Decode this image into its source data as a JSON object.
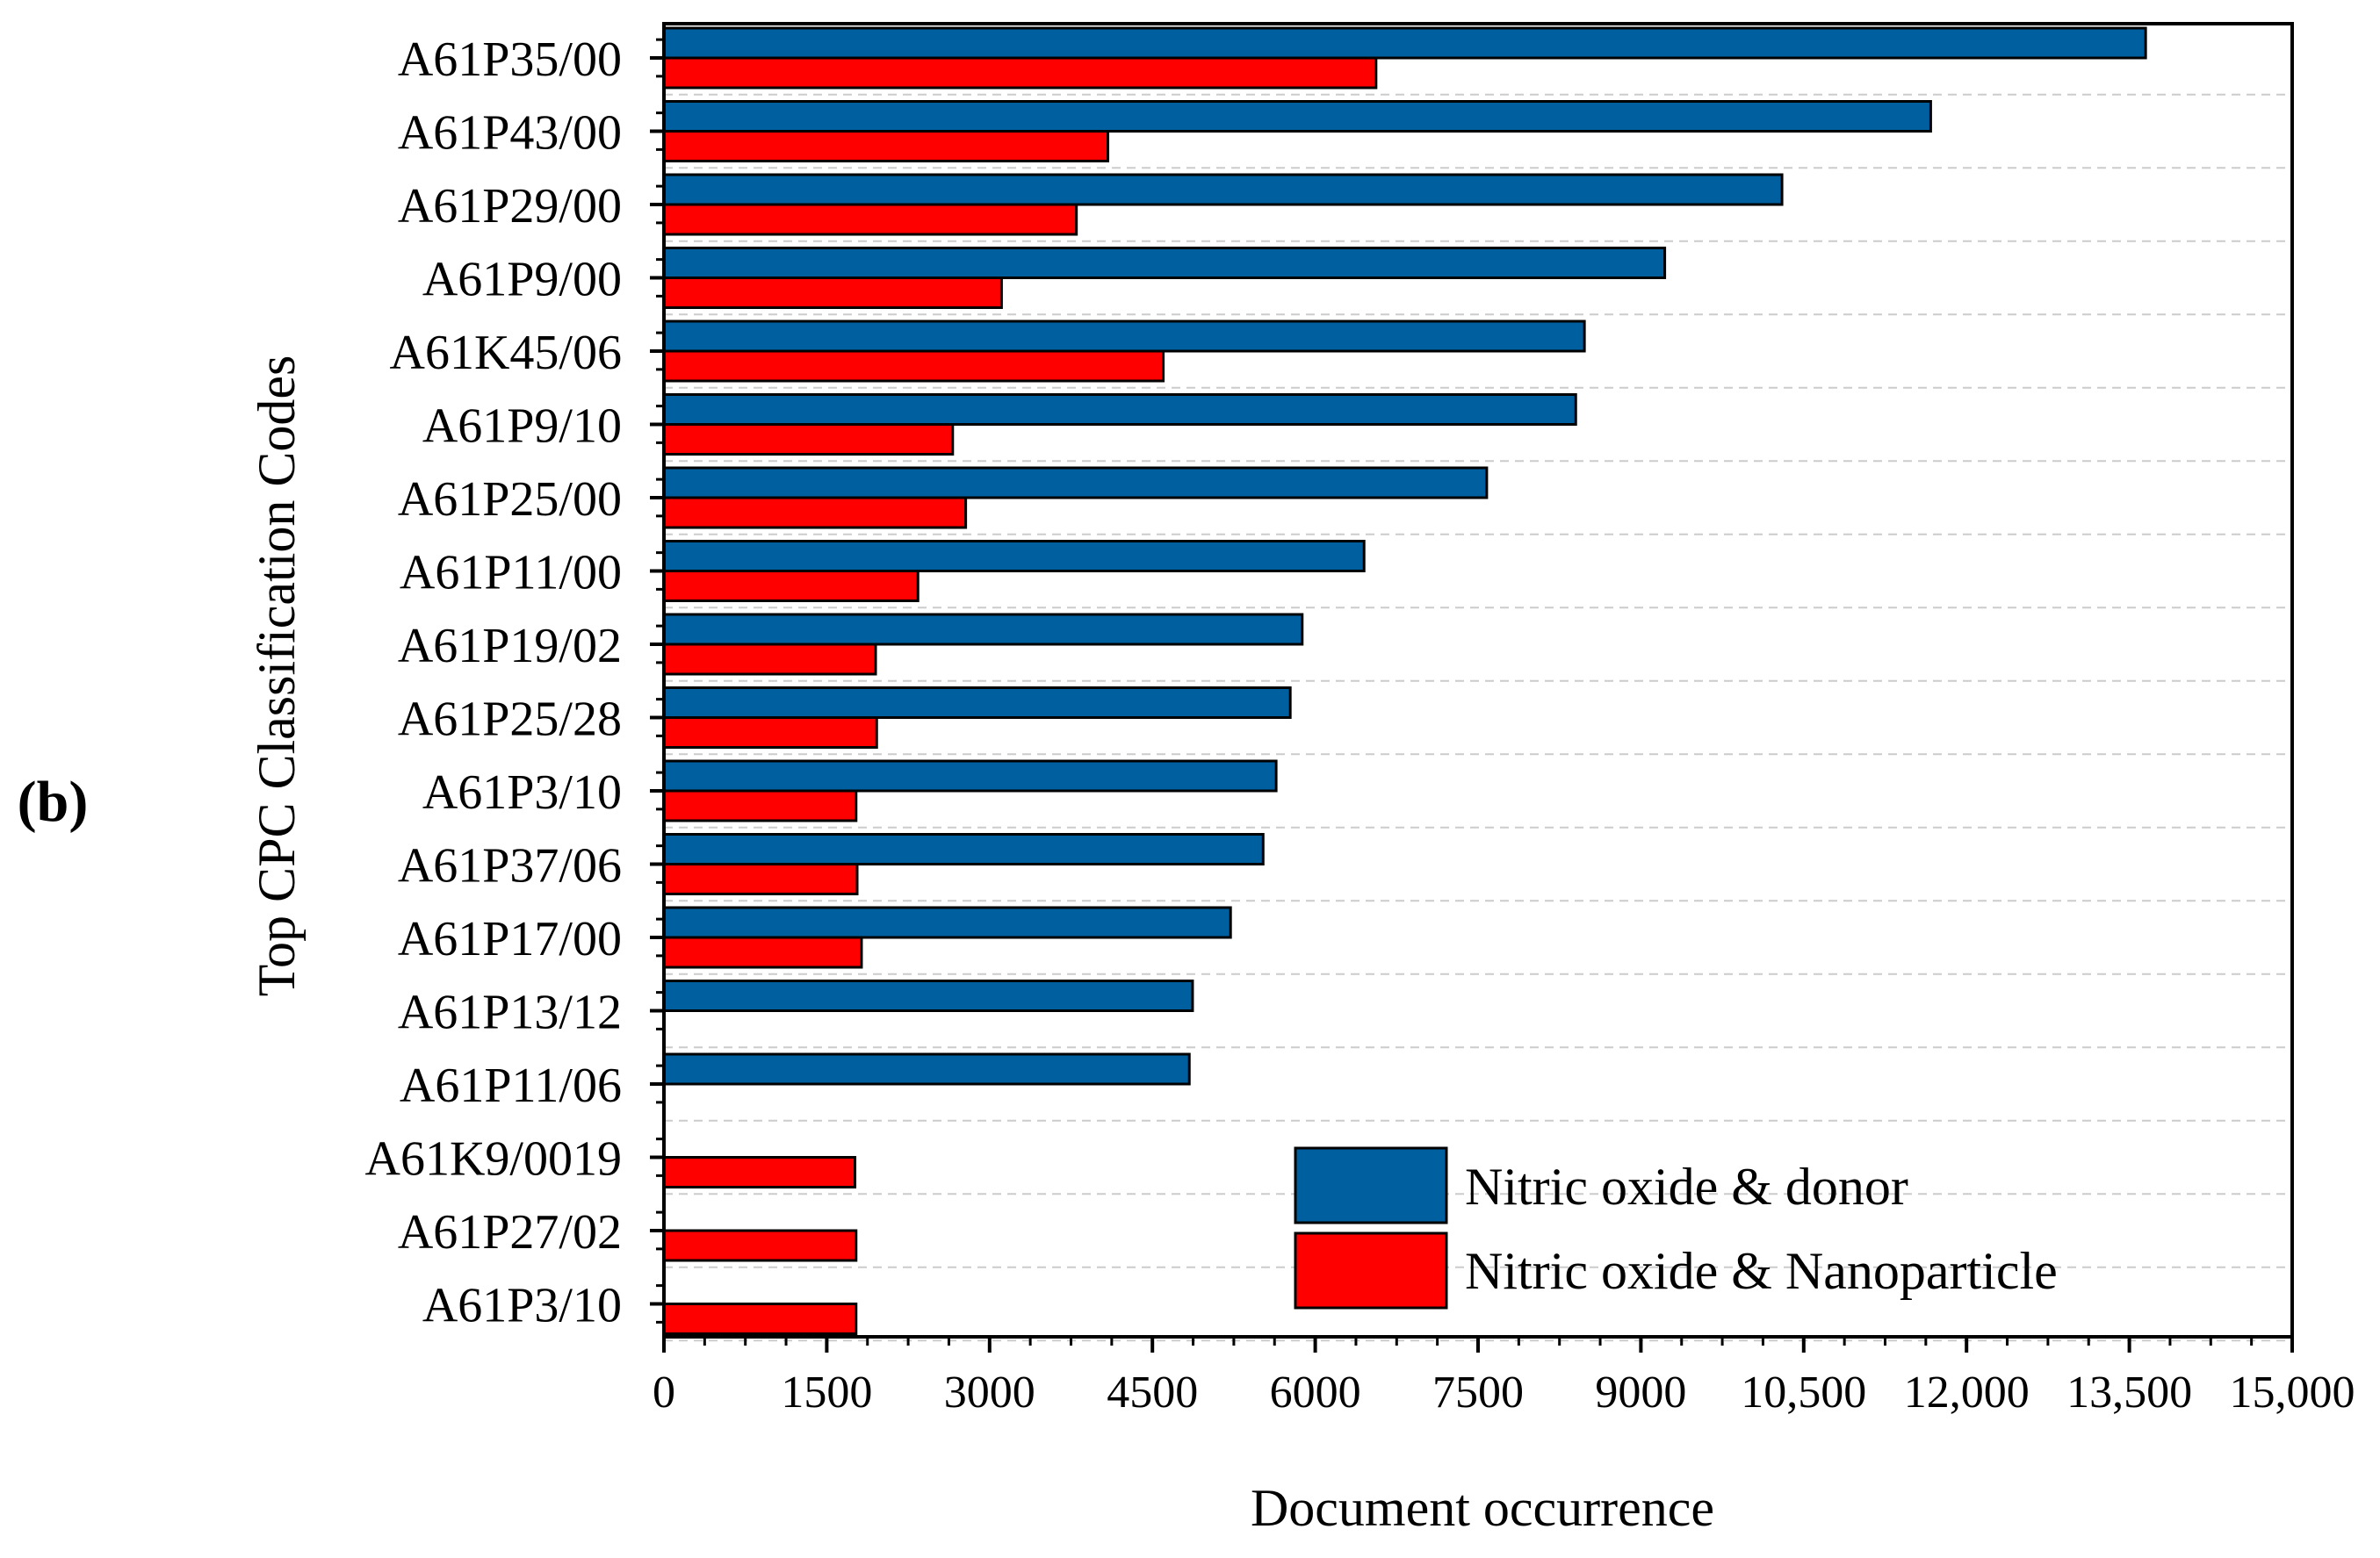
{
  "panel_label": "(b)",
  "chart_data": {
    "type": "bar",
    "orientation": "horizontal",
    "title": "",
    "xlabel": "Document occurrence",
    "ylabel": "Top CPC Classification Codes",
    "xlim": [
      0,
      15000
    ],
    "x_ticks": [
      0,
      1500,
      3000,
      4500,
      6000,
      7500,
      9000,
      10500,
      12000,
      13500,
      15000
    ],
    "x_tick_labels": [
      "0",
      "1500",
      "3000",
      "4500",
      "6000",
      "7500",
      "9000",
      "10,500",
      "12,000",
      "13,500",
      "15,000"
    ],
    "grid": "horizontal dashed",
    "legend_position": "bottom-right",
    "categories": [
      "A61P35/00",
      "A61P43/00",
      "A61P29/00",
      "A61P9/00",
      "A61K45/06",
      "A61P9/10",
      "A61P25/00",
      "A61P11/00",
      "A61P19/02",
      "A61P25/28",
      "A61P3/10",
      "A61P37/06",
      "A61P17/00",
      "A61P13/12",
      "A61P11/06",
      "A61K9/0019",
      "A61P27/02",
      "A61P3/10"
    ],
    "series": [
      {
        "name": "Nitric oxide & donor",
        "color": "#005f9e",
        "values": [
          13650,
          11670,
          10300,
          9220,
          8480,
          8400,
          7580,
          6450,
          5880,
          5770,
          5640,
          5520,
          5220,
          4870,
          4840,
          null,
          null,
          null
        ]
      },
      {
        "name": "Nitric oxide & Nanoparticle",
        "color": "#ff0000",
        "values": [
          6560,
          4090,
          3800,
          3110,
          4600,
          2660,
          2780,
          2340,
          1950,
          1960,
          1770,
          1780,
          1820,
          null,
          null,
          1760,
          1770,
          1770
        ]
      }
    ]
  }
}
